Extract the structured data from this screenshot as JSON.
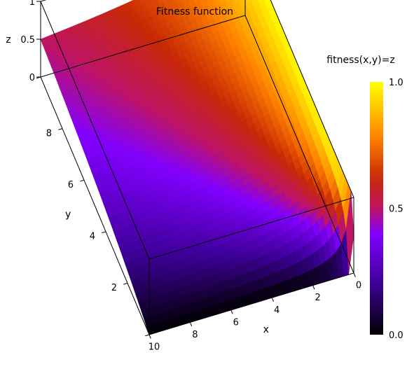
{
  "chart_data": {
    "type": "surface",
    "title": "Fitness function",
    "xlabel": "x",
    "ylabel": "y",
    "zlabel": "z",
    "xlim": [
      0,
      10
    ],
    "ylim": [
      0,
      10
    ],
    "zlim": [
      0,
      1
    ],
    "x_ticks": [
      "0",
      "2",
      "4",
      "6",
      "8",
      "10"
    ],
    "x_tick_values": [
      0,
      2,
      4,
      6,
      8,
      10
    ],
    "y_ticks": [
      "2",
      "4",
      "6",
      "8"
    ],
    "y_tick_values": [
      2,
      4,
      6,
      8
    ],
    "z_ticks": [
      "0",
      "0.5",
      "1"
    ],
    "z_tick_values": [
      0,
      0.5,
      1
    ],
    "colorbar": {
      "label": "fitness(x,y)=z",
      "ticks": [
        "0.0",
        "0.5",
        "1.0"
      ],
      "tick_values": [
        0,
        0.5,
        1
      ],
      "colormap": "gnuplot",
      "colors": [
        "#000000",
        "#7800ff",
        "#ff6a00",
        "#ffff00"
      ]
    },
    "surface": {
      "description_of_values": "z = y / (x + y)",
      "z_at_corners": {
        "x0_y0": 0.5,
        "x0_y10": 1.0,
        "x10_y0": 0.0,
        "x10_y10": 0.5
      }
    }
  }
}
